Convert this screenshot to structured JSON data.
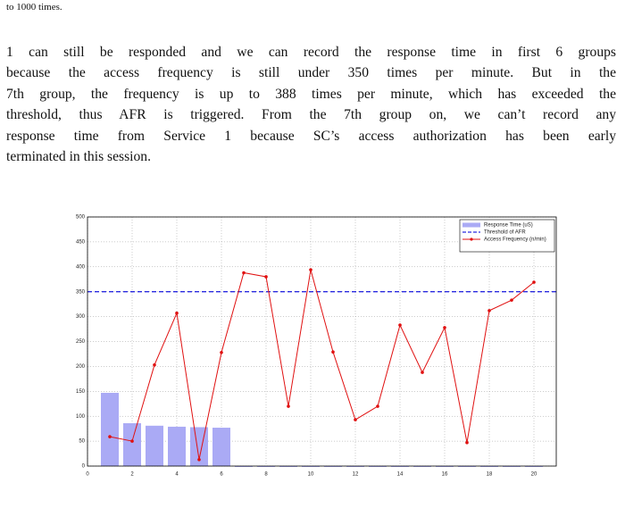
{
  "top_line": "to 1000 times.",
  "paragraph_lines": [
    "1 can still be responded and we can record the response time in first 6 groups",
    "because the access frequency is still under 350 times per minute.  But in the",
    "7th group, the frequency is up to 388 times per minute, which has exceeded the",
    "threshold, thus AFR is triggered. From the 7th group on, we can’t record any",
    "response time from Service 1 because SC’s access authorization has been early",
    "terminated in this session."
  ],
  "chart_data": {
    "type": "combo",
    "x": [
      1,
      2,
      3,
      4,
      5,
      6,
      7,
      8,
      9,
      10,
      11,
      12,
      13,
      14,
      15,
      16,
      17,
      18,
      19,
      20
    ],
    "series": [
      {
        "name": "Response Time (uS)",
        "type": "bar",
        "color": "#aaaaf5",
        "values": [
          147,
          86,
          81,
          79,
          78,
          77,
          0,
          0,
          0,
          0,
          0,
          0,
          0,
          0,
          0,
          0,
          0,
          0,
          0,
          0
        ]
      },
      {
        "name": "Threshold of AFR",
        "type": "hline",
        "color": "#2a2ae0",
        "value": 350
      },
      {
        "name": "Access Frequency (n/min)",
        "type": "line",
        "color": "#e01010",
        "values": [
          59,
          50,
          203,
          307,
          13,
          228,
          388,
          380,
          120,
          394,
          229,
          93,
          120,
          283,
          188,
          278,
          47,
          312,
          333,
          369
        ]
      }
    ],
    "xlim": [
      0,
      21
    ],
    "xticks": [
      0,
      2,
      4,
      6,
      8,
      10,
      12,
      14,
      16,
      18,
      20
    ],
    "ylim": [
      0,
      500
    ],
    "yticks": [
      0,
      50,
      100,
      150,
      200,
      250,
      300,
      350,
      400,
      450,
      500
    ],
    "grid": true,
    "legend": "upper right"
  }
}
